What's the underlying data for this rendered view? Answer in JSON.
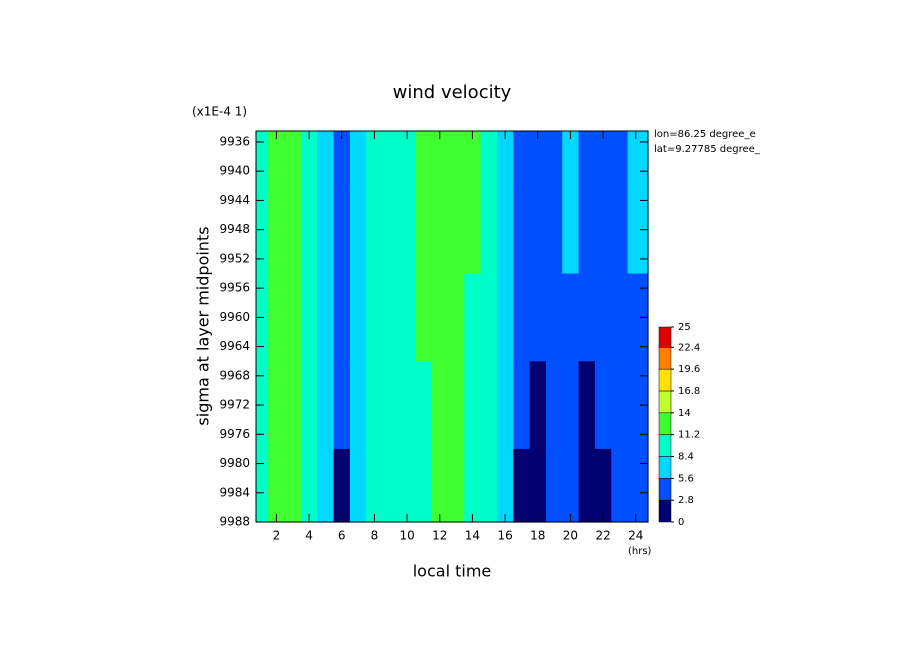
{
  "chart_data": {
    "type": "contour",
    "title": "wind velocity",
    "scale_note": "(x1E-4 1)",
    "xlabel": "local time",
    "xunit": "(hrs)",
    "ylabel": "sigma at layer midpoints",
    "annotations": [
      "lon=86.25 degree_e",
      "lat=9.27785 degree_"
    ],
    "x": [
      1,
      2,
      3,
      4,
      5,
      6,
      7,
      8,
      9,
      10,
      11,
      12,
      13,
      14,
      15,
      16,
      17,
      18,
      19,
      20,
      21,
      22,
      23,
      24
    ],
    "y": [
      9936,
      9948,
      9960,
      9972,
      9984
    ],
    "z": [
      [
        11,
        13,
        13.5,
        11,
        8,
        5,
        7,
        9,
        10,
        10.5,
        11.5,
        12.5,
        12.5,
        11.5,
        10,
        8,
        4,
        3.5,
        4.5,
        6,
        4,
        5,
        5.5,
        6
      ],
      [
        11,
        12.5,
        13,
        11,
        8,
        4.5,
        7,
        9,
        10,
        10.5,
        11.5,
        12.5,
        12.5,
        11.5,
        10,
        7.5,
        3.5,
        3,
        4.5,
        6,
        3.5,
        4.5,
        5.5,
        6
      ],
      [
        11,
        12,
        12.5,
        10.5,
        7.5,
        4.5,
        6.5,
        9,
        10,
        10.5,
        11.5,
        12,
        12,
        11,
        9.5,
        7,
        3.5,
        3,
        4,
        5.5,
        3,
        4,
        5,
        5.5
      ],
      [
        10.5,
        12,
        12,
        10,
        7,
        4,
        6,
        8.5,
        9.5,
        10,
        11,
        12,
        12,
        11,
        9.5,
        7,
        3,
        2.5,
        3.5,
        4.5,
        2.5,
        3.5,
        4.5,
        5.5
      ],
      [
        10,
        11.5,
        11.5,
        9.5,
        6,
        2.5,
        6,
        8.5,
        9.5,
        10,
        11,
        12,
        12,
        11,
        9,
        6.5,
        2.5,
        1.5,
        3,
        4,
        2.5,
        2.5,
        4,
        5
      ]
    ],
    "xlim": [
      0.75,
      24.75
    ],
    "xticks": [
      2,
      4,
      6,
      8,
      10,
      12,
      14,
      16,
      18,
      20,
      22,
      24
    ],
    "ylim": [
      9934.5,
      9988
    ],
    "yticks": [
      9936,
      9940,
      9944,
      9948,
      9952,
      9956,
      9960,
      9964,
      9968,
      9972,
      9976,
      9980,
      9984,
      9988
    ],
    "clim": [
      0,
      25
    ],
    "cticks": [
      0,
      2.8,
      5.6,
      8.4,
      11.2,
      14,
      16.8,
      19.6,
      22.4,
      25
    ],
    "colors": [
      "#000070",
      "#0050ff",
      "#00d8ff",
      "#00ffc8",
      "#40ff30",
      "#c0ff30",
      "#ffe000",
      "#ff8000",
      "#e00000"
    ]
  }
}
